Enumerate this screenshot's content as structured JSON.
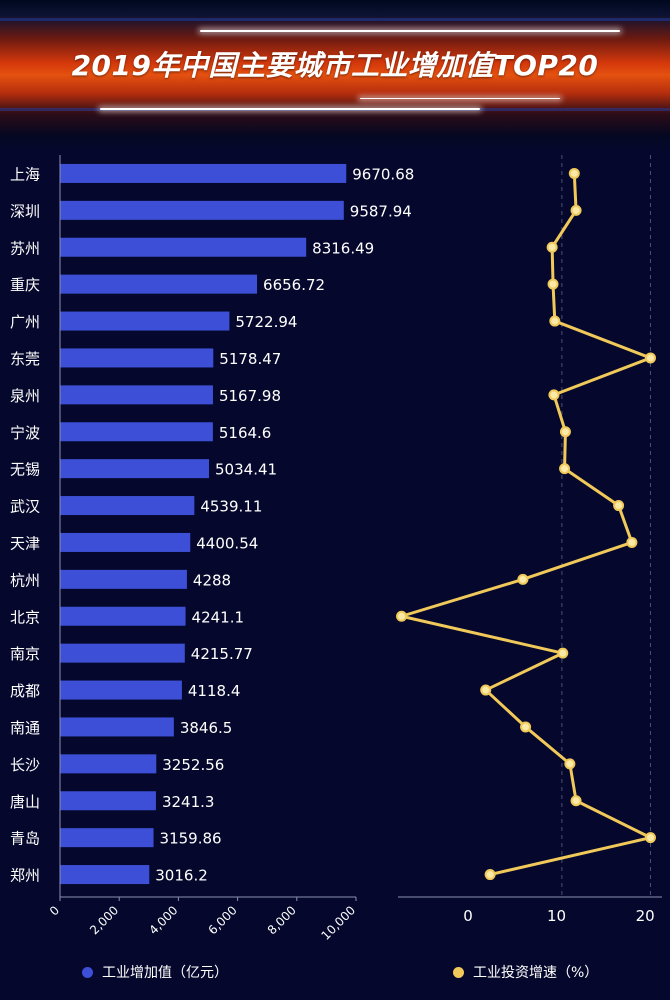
{
  "title": "2019年中国主要城市工业增加值TOP20",
  "colors": {
    "bar": "#3d4fd6",
    "line": "#f0c95a",
    "background": "#05082c",
    "text": "#ffffff"
  },
  "legend": {
    "bar_label": "工业增加值（亿元）",
    "line_label": "工业投资增速（%）"
  },
  "chart_data": {
    "type": "bar+line",
    "categories": [
      "上海",
      "深圳",
      "苏州",
      "重庆",
      "广州",
      "东莞",
      "泉州",
      "宁波",
      "无锡",
      "武汉",
      "天津",
      "杭州",
      "北京",
      "南京",
      "成都",
      "南通",
      "长沙",
      "唐山",
      "青岛",
      "郑州"
    ],
    "series": [
      {
        "name": "工业增加值（亿元）",
        "type": "bar",
        "values": [
          9670.68,
          9587.94,
          8316.49,
          6656.72,
          5722.94,
          5178.47,
          5167.98,
          5164.6,
          5034.41,
          4539.11,
          4400.54,
          4288,
          4241.1,
          4215.77,
          4118.4,
          3846.5,
          3252.56,
          3241.3,
          3159.86,
          3016.2
        ],
        "value_labels": [
          "9670.68",
          "9587.94",
          "8316.49",
          "6656.72",
          "5722.94",
          "5178.47",
          "5167.98",
          "5164.6",
          "5034.41",
          "4539.11",
          "4400.54",
          "4288",
          "4241.1",
          "4215.77",
          "4118.4",
          "3846.5",
          "3252.56",
          "3241.3",
          "3159.86",
          "3016.2"
        ],
        "xlim": [
          0,
          10000
        ],
        "ticks": [
          0,
          2000,
          4000,
          6000,
          8000,
          10000
        ],
        "tick_labels": [
          "0",
          "2,000",
          "4,000",
          "6,000",
          "8,000",
          "10,000"
        ]
      },
      {
        "name": "工业投资增速（%）",
        "type": "line",
        "values": [
          12,
          12.2,
          9.5,
          9.6,
          9.8,
          20.6,
          9.7,
          11,
          10.9,
          17,
          18.5,
          6.2,
          -7.5,
          10.7,
          2,
          6.5,
          11.5,
          12.2,
          20.6,
          2.5
        ],
        "xlim": [
          -7.9,
          21.9
        ],
        "ticks": [
          0,
          10,
          20
        ],
        "tick_labels": [
          "0",
          "10",
          "20"
        ],
        "gridlines": [
          10.6,
          20.6
        ]
      }
    ]
  }
}
